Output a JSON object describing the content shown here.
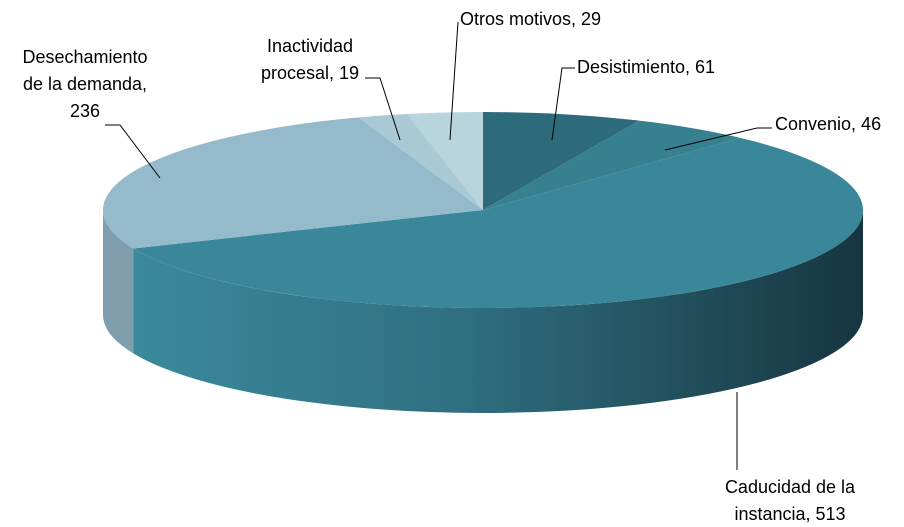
{
  "chart_data": {
    "type": "pie3d",
    "values": [
      61,
      46,
      513,
      236,
      19,
      29
    ],
    "value_labels": [
      "Desistimiento, 61",
      "Convenio, 46",
      "Caducidad de la\ninstancia, 513",
      "Desechamiento\nde la demanda,\n236",
      "Inactividad\nprocesal, 19",
      "Otros motivos, 29"
    ],
    "colors": [
      "#2d6b7b",
      "#36808f",
      "#3a8799",
      "#94bacb",
      "#a9c9d5",
      "#b8d4dd"
    ]
  }
}
